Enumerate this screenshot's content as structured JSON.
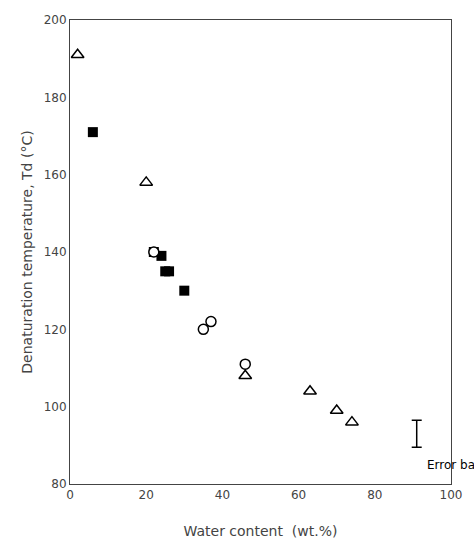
{
  "chart_data": {
    "type": "scatter",
    "xlabel": "Water content  (wt.%)",
    "ylabel": "Denaturation temperature, Td (°C)",
    "xlim": [
      0,
      100
    ],
    "ylim": [
      80,
      200
    ],
    "xticks": [
      0,
      20,
      40,
      60,
      80,
      100
    ],
    "yticks": [
      80,
      100,
      120,
      140,
      160,
      180,
      200
    ],
    "grid": false,
    "series": [
      {
        "marker": "square",
        "color": "#000000",
        "x": [
          6,
          22,
          24,
          25,
          26,
          30
        ],
        "values": [
          171,
          140,
          139,
          135,
          135,
          130
        ]
      },
      {
        "marker": "open_circle",
        "color": "#000000",
        "x": [
          22,
          35,
          37,
          46
        ],
        "values": [
          140,
          120,
          122,
          111
        ]
      },
      {
        "marker": "open_triangle",
        "color": "#000000",
        "x": [
          2,
          20,
          46,
          63,
          70,
          74
        ],
        "values": [
          191,
          158,
          108,
          104,
          99,
          96
        ]
      }
    ],
    "error_bar": {
      "x": 91,
      "y": 93,
      "yerr": 3.5,
      "label": "Error bar",
      "color": "#000000"
    }
  }
}
